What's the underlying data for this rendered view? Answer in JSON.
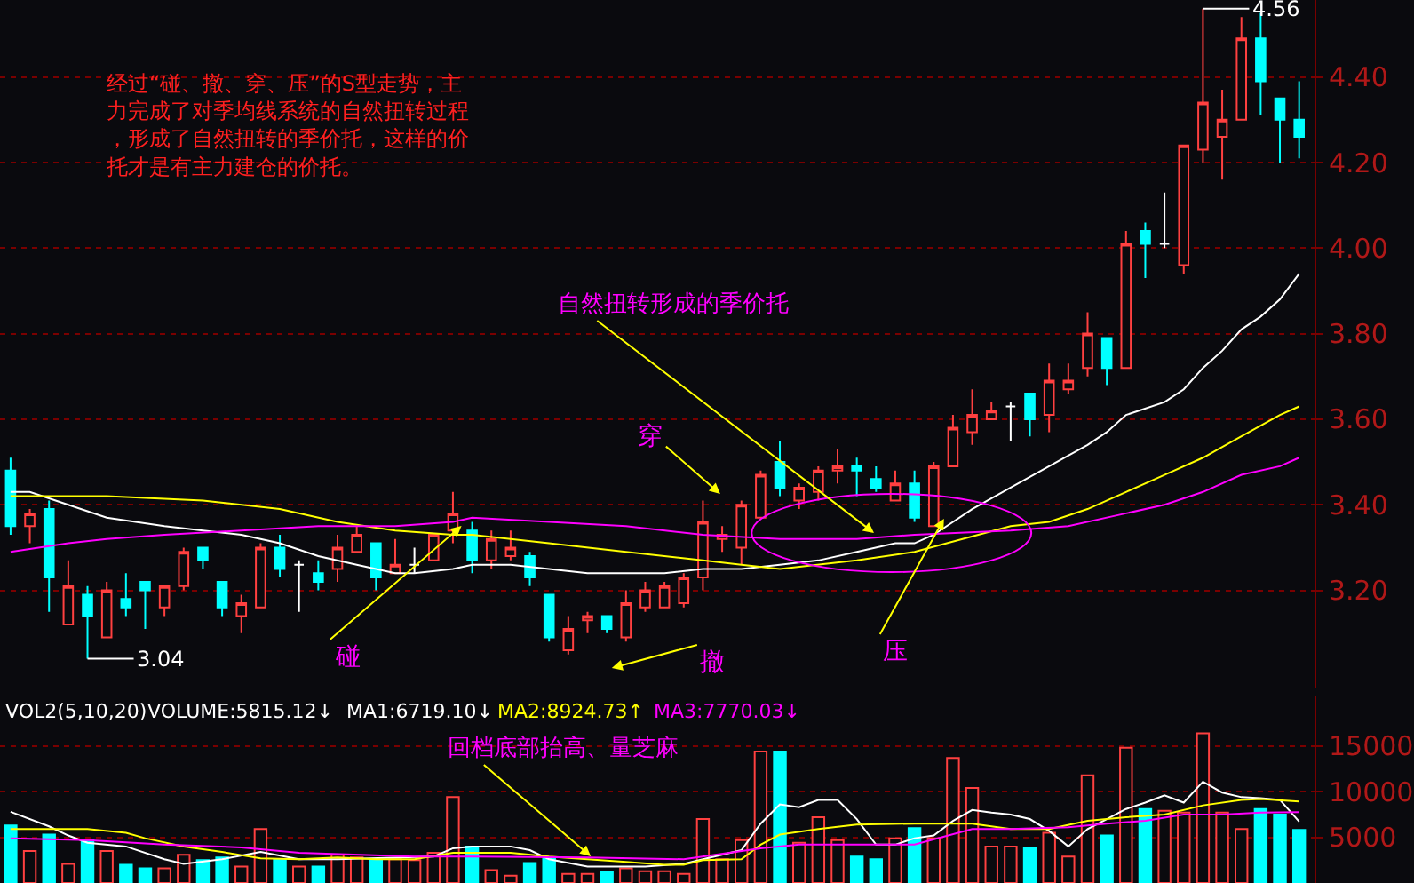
{
  "chart_data": [
    {
      "type": "candlestick",
      "categories": [
        null,
        null,
        null,
        null,
        null,
        null,
        null,
        null,
        null,
        null,
        null,
        null,
        null,
        null,
        null,
        null,
        null,
        null,
        null,
        null,
        null,
        null,
        null,
        null,
        null,
        null,
        null,
        null,
        null,
        null,
        null,
        null,
        null,
        null,
        null,
        null,
        null,
        null,
        null,
        null,
        null,
        null,
        null,
        null,
        null,
        null,
        null,
        null,
        null,
        null,
        null,
        null,
        null,
        null,
        null,
        null,
        null,
        null,
        null,
        null,
        null,
        null,
        null,
        null,
        null,
        null,
        null,
        null
      ],
      "ohlc": [
        [
          3.48,
          3.51,
          3.33,
          3.35
        ],
        [
          3.35,
          3.39,
          3.31,
          3.38
        ],
        [
          3.39,
          3.41,
          3.15,
          3.23
        ],
        [
          3.12,
          3.27,
          3.12,
          3.21
        ],
        [
          3.19,
          3.21,
          3.04,
          3.14
        ],
        [
          3.09,
          3.22,
          3.09,
          3.2
        ],
        [
          3.18,
          3.24,
          3.14,
          3.16
        ],
        [
          3.22,
          3.22,
          3.11,
          3.2
        ],
        [
          3.16,
          3.21,
          3.14,
          3.21
        ],
        [
          3.21,
          3.3,
          3.2,
          3.29
        ],
        [
          3.3,
          3.3,
          3.25,
          3.27
        ],
        [
          3.22,
          3.22,
          3.14,
          3.16
        ],
        [
          3.14,
          3.19,
          3.1,
          3.17
        ],
        [
          3.16,
          3.31,
          3.16,
          3.3
        ],
        [
          3.3,
          3.33,
          3.23,
          3.25
        ],
        [
          3.26,
          3.27,
          3.15,
          3.26
        ],
        [
          3.24,
          3.27,
          3.2,
          3.22
        ],
        [
          3.25,
          3.33,
          3.22,
          3.3
        ],
        [
          3.29,
          3.35,
          3.29,
          3.33
        ],
        [
          3.31,
          3.31,
          3.2,
          3.23
        ],
        [
          3.24,
          3.32,
          3.24,
          3.26
        ],
        [
          3.26,
          3.3,
          3.24,
          3.26
        ],
        [
          3.27,
          3.33,
          3.27,
          3.33
        ],
        [
          3.34,
          3.43,
          3.31,
          3.38
        ],
        [
          3.34,
          3.36,
          3.24,
          3.27
        ],
        [
          3.27,
          3.34,
          3.25,
          3.32
        ],
        [
          3.28,
          3.34,
          3.27,
          3.3
        ],
        [
          3.28,
          3.29,
          3.21,
          3.23
        ],
        [
          3.19,
          3.19,
          3.08,
          3.09
        ],
        [
          3.06,
          3.14,
          3.05,
          3.11
        ],
        [
          3.13,
          3.15,
          3.1,
          3.14
        ],
        [
          3.14,
          3.14,
          3.1,
          3.11
        ],
        [
          3.09,
          3.2,
          3.08,
          3.17
        ],
        [
          3.16,
          3.22,
          3.15,
          3.2
        ],
        [
          3.16,
          3.22,
          3.16,
          3.21
        ],
        [
          3.17,
          3.24,
          3.16,
          3.23
        ],
        [
          3.23,
          3.41,
          3.2,
          3.36
        ],
        [
          3.32,
          3.35,
          3.29,
          3.33
        ],
        [
          3.3,
          3.41,
          3.26,
          3.4
        ],
        [
          3.37,
          3.48,
          3.37,
          3.47
        ],
        [
          3.5,
          3.55,
          3.42,
          3.44
        ],
        [
          3.41,
          3.45,
          3.39,
          3.44
        ],
        [
          3.43,
          3.49,
          3.41,
          3.48
        ],
        [
          3.48,
          3.53,
          3.45,
          3.49
        ],
        [
          3.49,
          3.51,
          3.42,
          3.48
        ],
        [
          3.46,
          3.49,
          3.43,
          3.44
        ],
        [
          3.41,
          3.48,
          3.41,
          3.45
        ],
        [
          3.45,
          3.48,
          3.36,
          3.37
        ],
        [
          3.35,
          3.5,
          3.35,
          3.49
        ],
        [
          3.49,
          3.61,
          3.49,
          3.58
        ],
        [
          3.57,
          3.67,
          3.54,
          3.61
        ],
        [
          3.6,
          3.64,
          3.6,
          3.62
        ],
        [
          3.63,
          3.64,
          3.55,
          3.63
        ],
        [
          3.66,
          3.66,
          3.56,
          3.6
        ],
        [
          3.61,
          3.73,
          3.57,
          3.69
        ],
        [
          3.67,
          3.73,
          3.66,
          3.69
        ],
        [
          3.72,
          3.85,
          3.7,
          3.8
        ],
        [
          3.79,
          3.79,
          3.68,
          3.72
        ],
        [
          3.72,
          4.04,
          3.72,
          4.01
        ],
        [
          4.04,
          4.06,
          3.93,
          4.01
        ],
        [
          4.01,
          4.13,
          4.0,
          4.01
        ],
        [
          3.96,
          4.24,
          3.94,
          4.24
        ],
        [
          4.23,
          4.56,
          4.2,
          4.34
        ],
        [
          4.26,
          4.37,
          4.16,
          4.3
        ],
        [
          4.3,
          4.54,
          4.3,
          4.49
        ],
        [
          4.49,
          4.55,
          4.31,
          4.39
        ],
        [
          4.35,
          4.35,
          4.2,
          4.3
        ],
        [
          4.3,
          4.39,
          4.21,
          4.26
        ]
      ],
      "colors": [
        "#00ffff",
        "#ff4040",
        "#00ffff",
        "#ff4040",
        "#00ffff",
        "#ff4040",
        "#00ffff",
        "#00ffff",
        "#ff4040",
        "#ff4040",
        "#00ffff",
        "#00ffff",
        "#ff4040",
        "#ff4040",
        "#00ffff",
        "#ffffff",
        "#00ffff",
        "#ff4040",
        "#ff4040",
        "#00ffff",
        "#ff4040",
        "#ffffff",
        "#ff4040",
        "#ff4040",
        "#00ffff",
        "#ff4040",
        "#ff4040",
        "#00ffff",
        "#00ffff",
        "#ff4040",
        "#ff4040",
        "#00ffff",
        "#ff4040",
        "#ff4040",
        "#ff4040",
        "#ff4040",
        "#ff4040",
        "#ff4040",
        "#ff4040",
        "#ff4040",
        "#00ffff",
        "#ff4040",
        "#ff4040",
        "#ff4040",
        "#00ffff",
        "#00ffff",
        "#ff4040",
        "#00ffff",
        "#ff4040",
        "#ff4040",
        "#ff4040",
        "#ff4040",
        "#ffffff",
        "#00ffff",
        "#ff4040",
        "#ff4040",
        "#ff4040",
        "#00ffff",
        "#ff4040",
        "#00ffff",
        "#ffffff",
        "#ff4040",
        "#ff4040",
        "#ff4040",
        "#ff4040",
        "#00ffff",
        "#00ffff",
        "#00ffff"
      ],
      "series": [
        {
          "type": "line",
          "color": "#ffffff",
          "values": [
            3.43,
            3.43,
            null,
            3.4,
            null,
            3.37,
            null,
            null,
            3.35,
            null,
            3.34,
            null,
            3.33,
            null,
            3.31,
            null,
            3.28,
            null,
            3.26,
            null,
            3.24,
            3.24,
            null,
            3.25,
            3.26,
            null,
            3.26,
            null,
            3.25,
            null,
            3.24,
            null,
            3.24,
            null,
            3.24,
            null,
            3.25,
            null,
            3.25,
            null,
            3.26,
            null,
            3.27,
            null,
            3.29,
            null,
            3.31,
            3.31,
            3.33,
            null,
            3.39,
            null,
            3.44,
            null,
            3.49,
            null,
            3.54,
            3.57,
            3.61,
            null,
            3.64,
            3.67,
            3.72,
            3.76,
            3.81,
            3.84,
            3.88,
            3.94
          ]
        },
        {
          "type": "line",
          "color": "#ffff00",
          "values": [
            3.42,
            null,
            null,
            null,
            null,
            3.42,
            null,
            null,
            null,
            null,
            3.41,
            null,
            null,
            null,
            3.39,
            null,
            null,
            3.36,
            null,
            null,
            3.34,
            null,
            null,
            3.33,
            3.33,
            null,
            null,
            null,
            3.31,
            null,
            null,
            null,
            3.29,
            null,
            null,
            null,
            3.27,
            null,
            3.26,
            null,
            3.25,
            null,
            null,
            null,
            3.27,
            null,
            null,
            3.29,
            null,
            null,
            null,
            null,
            3.35,
            null,
            3.36,
            null,
            3.39,
            null,
            3.43,
            null,
            3.47,
            null,
            3.51,
            null,
            3.56,
            null,
            3.61,
            3.63
          ]
        },
        {
          "type": "line",
          "color": "#ff00ff",
          "values": [
            3.29,
            null,
            null,
            3.31,
            null,
            3.32,
            null,
            null,
            3.33,
            null,
            null,
            null,
            3.34,
            null,
            null,
            null,
            3.35,
            null,
            null,
            null,
            3.35,
            null,
            null,
            3.36,
            3.37,
            null,
            null,
            null,
            3.36,
            null,
            null,
            null,
            3.35,
            null,
            null,
            null,
            3.33,
            null,
            null,
            null,
            3.32,
            null,
            null,
            null,
            3.32,
            null,
            null,
            3.33,
            null,
            null,
            null,
            null,
            3.34,
            null,
            null,
            3.35,
            null,
            null,
            3.38,
            null,
            3.4,
            null,
            3.43,
            null,
            3.47,
            null,
            3.49,
            3.51
          ]
        }
      ],
      "ylim": [
        2.97,
        4.58
      ],
      "yticks": [
        {
          "value": 3.2,
          "label": "3.20"
        },
        {
          "value": 3.4,
          "label": "3.40"
        },
        {
          "value": 3.6,
          "label": "3.60"
        },
        {
          "value": 3.8,
          "label": "3.80"
        },
        {
          "value": 4.0,
          "label": "4.00"
        },
        {
          "value": 4.2,
          "label": "4.20"
        },
        {
          "value": 4.4,
          "label": "4.40"
        }
      ],
      "grid": "y",
      "annotations": [
        "经过“碰、撤、穿、压”的S型走势，主力完成了对季均线系统的自然扭转过程，形成了自然扭转的季价托，这样的价托才是有主力建仓的价托。",
        "自然扭转形成的季价托",
        "穿",
        "碰",
        "撤",
        "压",
        "4.56",
        "3.04"
      ]
    },
    {
      "type": "bar",
      "categories": [
        null,
        null,
        null,
        null,
        null,
        null,
        null,
        null,
        null,
        null,
        null,
        null,
        null,
        null,
        null,
        null,
        null,
        null,
        null,
        null,
        null,
        null,
        null,
        null,
        null,
        null,
        null,
        null,
        null,
        null,
        null,
        null,
        null,
        null,
        null,
        null,
        null,
        null,
        null,
        null,
        null,
        null,
        null,
        null,
        null,
        null,
        null,
        null,
        null,
        null,
        null,
        null,
        null,
        null,
        null,
        null,
        null,
        null,
        null,
        null,
        null,
        null,
        null,
        null,
        null,
        null,
        null,
        null
      ],
      "series": [
        {
          "type": "bar",
          "colors": [
            "#00ffff",
            "#ff4040",
            "#00ffff",
            "#ff4040",
            "#00ffff",
            "#ff4040",
            "#00ffff",
            "#00ffff",
            "#ff4040",
            "#ff4040",
            "#00ffff",
            "#00ffff",
            "#ff4040",
            "#ff4040",
            "#00ffff",
            "#ff4040",
            "#00ffff",
            "#ff4040",
            "#ff4040",
            "#00ffff",
            "#ff4040",
            "#ff4040",
            "#ff4040",
            "#ff4040",
            "#00ffff",
            "#ff4040",
            "#ff4040",
            "#00ffff",
            "#00ffff",
            "#ff4040",
            "#ff4040",
            "#00ffff",
            "#ff4040",
            "#ff4040",
            "#ff4040",
            "#ff4040",
            "#ff4040",
            "#ff4040",
            "#ff4040",
            "#ff4040",
            "#00ffff",
            "#ff4040",
            "#ff4040",
            "#ff4040",
            "#00ffff",
            "#00ffff",
            "#ff4040",
            "#00ffff",
            "#ff4040",
            "#ff4040",
            "#ff4040",
            "#ff4040",
            "#ff4040",
            "#00ffff",
            "#ff4040",
            "#ff4040",
            "#ff4040",
            "#00ffff",
            "#ff4040",
            "#00ffff",
            "#ff4040",
            "#ff4040",
            "#ff4040",
            "#ff4040",
            "#ff4040",
            "#00ffff",
            "#00ffff",
            "#00ffff"
          ],
          "values": [
            6300,
            3500,
            5300,
            2100,
            4700,
            3500,
            2000,
            1600,
            1600,
            3100,
            2500,
            2800,
            1800,
            5900,
            2600,
            1800,
            1800,
            3100,
            2800,
            2500,
            2600,
            2500,
            3300,
            9400,
            4000,
            1400,
            800,
            2200,
            2700,
            1000,
            1000,
            1200,
            1600,
            1300,
            1300,
            1000,
            7000,
            2600,
            4700,
            14400,
            14400,
            4400,
            7200,
            4700,
            2900,
            2600,
            4900,
            6000,
            4900,
            13700,
            10400,
            4000,
            4000,
            3900,
            5500,
            2900,
            11800,
            5200,
            14800,
            8100,
            7900,
            7700,
            16400,
            7700,
            5900,
            8100,
            7500,
            5815.12
          ]
        },
        {
          "type": "line",
          "color": "#ffffff",
          "values": [
            7800,
            null,
            6200,
            5200,
            4400,
            null,
            4000,
            null,
            2600,
            2100,
            null,
            2600,
            null,
            3400,
            null,
            2600,
            null,
            2600,
            null,
            null,
            null,
            null,
            2900,
            3800,
            4000,
            null,
            4000,
            3600,
            2600,
            null,
            1800,
            1800,
            null,
            1800,
            null,
            2100,
            2600,
            null,
            3600,
            6500,
            8600,
            8300,
            9100,
            9100,
            7000,
            4200,
            4200,
            4900,
            5200,
            6800,
            8000,
            7700,
            7500,
            7000,
            5700,
            4000,
            5900,
            7000,
            8100,
            8800,
            9600,
            8800,
            11100,
            9900,
            9400,
            9300,
            9100,
            6719.1
          ]
        },
        {
          "type": "line",
          "color": "#ffff00",
          "values": [
            5900,
            null,
            5900,
            null,
            5900,
            null,
            5500,
            4900,
            null,
            4000,
            null,
            3400,
            null,
            2700,
            null,
            2600,
            null,
            2800,
            null,
            2600,
            null,
            2600,
            null,
            3300,
            3300,
            null,
            3300,
            null,
            2900,
            null,
            2600,
            null,
            2300,
            null,
            2000,
            2000,
            2500,
            null,
            2600,
            4200,
            5300,
            null,
            5900,
            null,
            6400,
            null,
            null,
            6500,
            null,
            null,
            6500,
            null,
            5900,
            null,
            5900,
            null,
            6800,
            null,
            7200,
            null,
            7500,
            null,
            8500,
            null,
            9100,
            9200,
            null,
            8924.73
          ]
        },
        {
          "type": "line",
          "color": "#ff00ff",
          "values": [
            4900,
            null,
            null,
            null,
            4700,
            null,
            null,
            null,
            4200,
            null,
            null,
            null,
            3900,
            null,
            null,
            3300,
            null,
            null,
            null,
            null,
            null,
            2900,
            null,
            null,
            2900,
            null,
            null,
            null,
            null,
            null,
            2800,
            null,
            null,
            null,
            null,
            2600,
            null,
            null,
            null,
            3800,
            null,
            4200,
            null,
            null,
            4200,
            null,
            null,
            4200,
            null,
            null,
            5900,
            null,
            5900,
            null,
            null,
            6100,
            null,
            6500,
            null,
            6800,
            null,
            7500,
            null,
            7500,
            null,
            7700,
            null,
            7770.03
          ]
        }
      ],
      "ylim": [
        0,
        20500
      ],
      "yticks": [
        5000,
        10000,
        15000
      ],
      "grid": "y",
      "annotations": [
        "回档底部抬高、量芝麻",
        "VOL2(5,10,20)",
        "VOLUME:5815.12↓",
        "MA1:6719.10↓",
        "MA2:8924.73↑",
        "MA3:7770.03↓"
      ]
    }
  ]
}
